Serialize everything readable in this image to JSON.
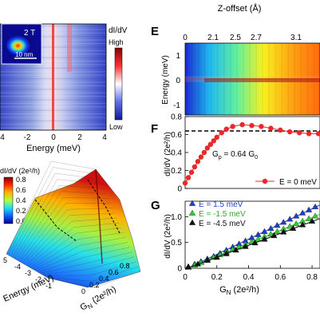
{
  "panelA": {
    "inset_field": "2 T",
    "inset_scale": "10 nm",
    "colorbar_title": "dI/dV",
    "colorbar_high": "High",
    "colorbar_low": "Low",
    "xlabel": "Energy (meV)",
    "xticks": [
      "4",
      "-2",
      "0",
      "2",
      "4"
    ]
  },
  "panelD": {
    "zlabel": "dI/dV (2e²/h)",
    "colorbar_ticks": [
      "0.8",
      "0.6",
      "0.4",
      "0.2",
      "0.0"
    ],
    "energy_label": "Energy (meV)",
    "energy_ticks": [
      "5",
      "-4",
      "-3",
      "-2",
      "-1"
    ],
    "gn_label": "G",
    "gn_sub": "N",
    "gn_unit": " (2e²/h)",
    "gn_ticks": [
      "0",
      "0.2",
      "0.4",
      "0.6",
      "0.8"
    ]
  },
  "panelE": {
    "letter": "E",
    "xlabel": "Z-offset (Å)",
    "xticks": [
      "0",
      "2.1",
      "2.5",
      "2.7",
      "3.1"
    ],
    "ylabel": "Energy (meV)",
    "yticks": [
      "1",
      "0",
      "-1"
    ]
  },
  "chart_data": [
    {
      "panel": "F",
      "type": "scatter",
      "ylabel": "dI/dV (2e²/h)",
      "xlim": [
        0,
        0.85
      ],
      "ylim": [
        0,
        0.8
      ],
      "yticks": [
        "0",
        "0.2",
        "0.4",
        "0.6",
        "0.8"
      ],
      "annotation": "G",
      "annotation_sub": "p",
      "annotation_value": " = 0.64 G",
      "annotation_sub2": "0",
      "reference_line": 0.64,
      "series": [
        {
          "name": "E = 0 meV",
          "color": "#e8282b",
          "x": [
            0.0,
            0.02,
            0.04,
            0.06,
            0.08,
            0.1,
            0.12,
            0.14,
            0.16,
            0.18,
            0.2,
            0.23,
            0.26,
            0.3,
            0.36,
            0.42,
            0.48,
            0.54,
            0.6,
            0.66,
            0.72,
            0.78,
            0.84
          ],
          "y": [
            0.06,
            0.12,
            0.18,
            0.24,
            0.3,
            0.35,
            0.4,
            0.45,
            0.49,
            0.53,
            0.57,
            0.62,
            0.66,
            0.69,
            0.71,
            0.7,
            0.69,
            0.67,
            0.65,
            0.63,
            0.62,
            0.61,
            0.61
          ]
        }
      ]
    },
    {
      "panel": "G",
      "type": "scatter",
      "ylabel": "dI/dV (2e²/h)",
      "xlabel": "G",
      "xlabel_sub": "N",
      "xlabel_unit": " (2e²/h)",
      "xlim": [
        0,
        0.85
      ],
      "ylim": [
        0,
        1.3
      ],
      "xticks": [
        "0",
        "0.2",
        "0.4",
        "0.6",
        "0.8"
      ],
      "yticks": [
        "0",
        "0.5",
        "1.0"
      ],
      "series": [
        {
          "name": "E = 1.5 meV",
          "color": "#1f3fc8",
          "x": [
            0.02,
            0.06,
            0.1,
            0.14,
            0.18,
            0.22,
            0.26,
            0.3,
            0.34,
            0.38,
            0.42,
            0.46,
            0.5,
            0.54,
            0.58,
            0.62,
            0.66,
            0.7,
            0.74,
            0.78,
            0.82
          ],
          "y": [
            0.03,
            0.08,
            0.13,
            0.18,
            0.23,
            0.29,
            0.35,
            0.41,
            0.47,
            0.53,
            0.59,
            0.65,
            0.71,
            0.77,
            0.83,
            0.89,
            0.95,
            1.01,
            1.07,
            1.13,
            1.19
          ]
        },
        {
          "name": "E = -1.5 meV",
          "color": "#33cc33",
          "x": [
            0.02,
            0.06,
            0.1,
            0.14,
            0.18,
            0.22,
            0.26,
            0.3,
            0.34,
            0.38,
            0.42,
            0.46,
            0.5,
            0.54,
            0.58,
            0.62,
            0.66,
            0.7,
            0.74,
            0.78,
            0.82
          ],
          "y": [
            0.02,
            0.06,
            0.11,
            0.16,
            0.21,
            0.26,
            0.31,
            0.36,
            0.41,
            0.46,
            0.51,
            0.56,
            0.61,
            0.66,
            0.71,
            0.76,
            0.81,
            0.86,
            0.91,
            0.96,
            1.01
          ]
        },
        {
          "name": "E = -4.5 meV",
          "color": "#111111",
          "x": [
            0.02,
            0.08,
            0.14,
            0.2,
            0.26,
            0.32,
            0.38,
            0.44,
            0.5,
            0.56,
            0.62,
            0.68,
            0.74,
            0.8
          ],
          "y": [
            0.02,
            0.08,
            0.15,
            0.21,
            0.28,
            0.35,
            0.42,
            0.49,
            0.56,
            0.63,
            0.7,
            0.77,
            0.84,
            0.91
          ]
        }
      ]
    }
  ]
}
